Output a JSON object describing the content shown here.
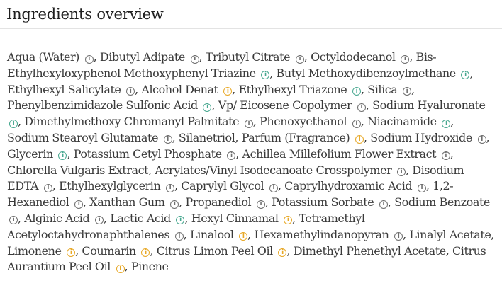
{
  "header": {
    "title": "Ingredients overview"
  },
  "icon_colors": {
    "grey": "#6e6e6e",
    "green": "#48a890",
    "yellow": "#e8a825"
  },
  "info_icon_glyph": "i",
  "ingredients": [
    {
      "name": "Aqua (Water)",
      "icon": "grey"
    },
    {
      "name": "Dibutyl Adipate",
      "icon": "grey"
    },
    {
      "name": "Tributyl Citrate",
      "icon": "grey"
    },
    {
      "name": "Octyldodecanol",
      "icon": "grey"
    },
    {
      "name": "Bis-Ethylhexyloxyphenol Methoxyphenyl Triazine",
      "icon": "green"
    },
    {
      "name": "Butyl Methoxydibenzoylmethane",
      "icon": "green"
    },
    {
      "name": "Ethylhexyl Salicylate",
      "icon": "grey"
    },
    {
      "name": "Alcohol Denat",
      "icon": "yellow"
    },
    {
      "name": "Ethylhexyl Triazone",
      "icon": "green"
    },
    {
      "name": "Silica",
      "icon": "grey"
    },
    {
      "name": "Phenylbenzimidazole Sulfonic Acid",
      "icon": "green"
    },
    {
      "name": "Vp/ Eicosene Copolymer",
      "icon": "grey"
    },
    {
      "name": "Sodium Hyaluronate",
      "icon": "green"
    },
    {
      "name": "Dimethylmethoxy Chromanyl Palmitate",
      "icon": "grey"
    },
    {
      "name": "Phenoxyethanol",
      "icon": "grey"
    },
    {
      "name": "Niacinamide",
      "icon": "green"
    },
    {
      "name": "Sodium Stearoyl Glutamate",
      "icon": "grey"
    },
    {
      "name": "Silanetriol",
      "icon": null
    },
    {
      "name": "Parfum (Fragrance)",
      "icon": "yellow"
    },
    {
      "name": "Sodium Hydroxide",
      "icon": "grey"
    },
    {
      "name": "Glycerin",
      "icon": "green"
    },
    {
      "name": "Potassium Cetyl Phosphate",
      "icon": "grey"
    },
    {
      "name": "Achillea Millefolium Flower Extract",
      "icon": "grey"
    },
    {
      "name": "Chlorella Vulgaris Extract",
      "icon": null
    },
    {
      "name": "Acrylates/Vinyl Isodecanoate Crosspolymer",
      "icon": "grey"
    },
    {
      "name": "Disodium EDTA",
      "icon": "grey"
    },
    {
      "name": "Ethylhexylglycerin",
      "icon": "grey"
    },
    {
      "name": "Caprylyl Glycol",
      "icon": "grey"
    },
    {
      "name": "Caprylhydroxamic Acid",
      "icon": "grey"
    },
    {
      "name": "1,2-Hexanediol",
      "icon": "grey"
    },
    {
      "name": "Xanthan Gum",
      "icon": "grey"
    },
    {
      "name": "Propanediol",
      "icon": "grey"
    },
    {
      "name": "Potassium Sorbate",
      "icon": "grey"
    },
    {
      "name": "Sodium Benzoate",
      "icon": "grey"
    },
    {
      "name": "Alginic Acid",
      "icon": "grey"
    },
    {
      "name": "Lactic Acid",
      "icon": "green"
    },
    {
      "name": "Hexyl Cinnamal",
      "icon": "yellow"
    },
    {
      "name": "Tetramethyl Acetyloctahydronaphthalenes",
      "icon": "grey"
    },
    {
      "name": "Linalool",
      "icon": "yellow"
    },
    {
      "name": "Hexamethylindanopyran",
      "icon": "grey"
    },
    {
      "name": "Linalyl Acetate",
      "icon": null
    },
    {
      "name": "Limonene",
      "icon": "yellow"
    },
    {
      "name": "Coumarin",
      "icon": "yellow"
    },
    {
      "name": "Citrus Limon Peel Oil",
      "icon": "yellow"
    },
    {
      "name": "Dimethyl Phenethyl Acetate",
      "icon": null
    },
    {
      "name": "Citrus Aurantium Peel Oil",
      "icon": "yellow"
    },
    {
      "name": "Pinene",
      "icon": null
    }
  ]
}
